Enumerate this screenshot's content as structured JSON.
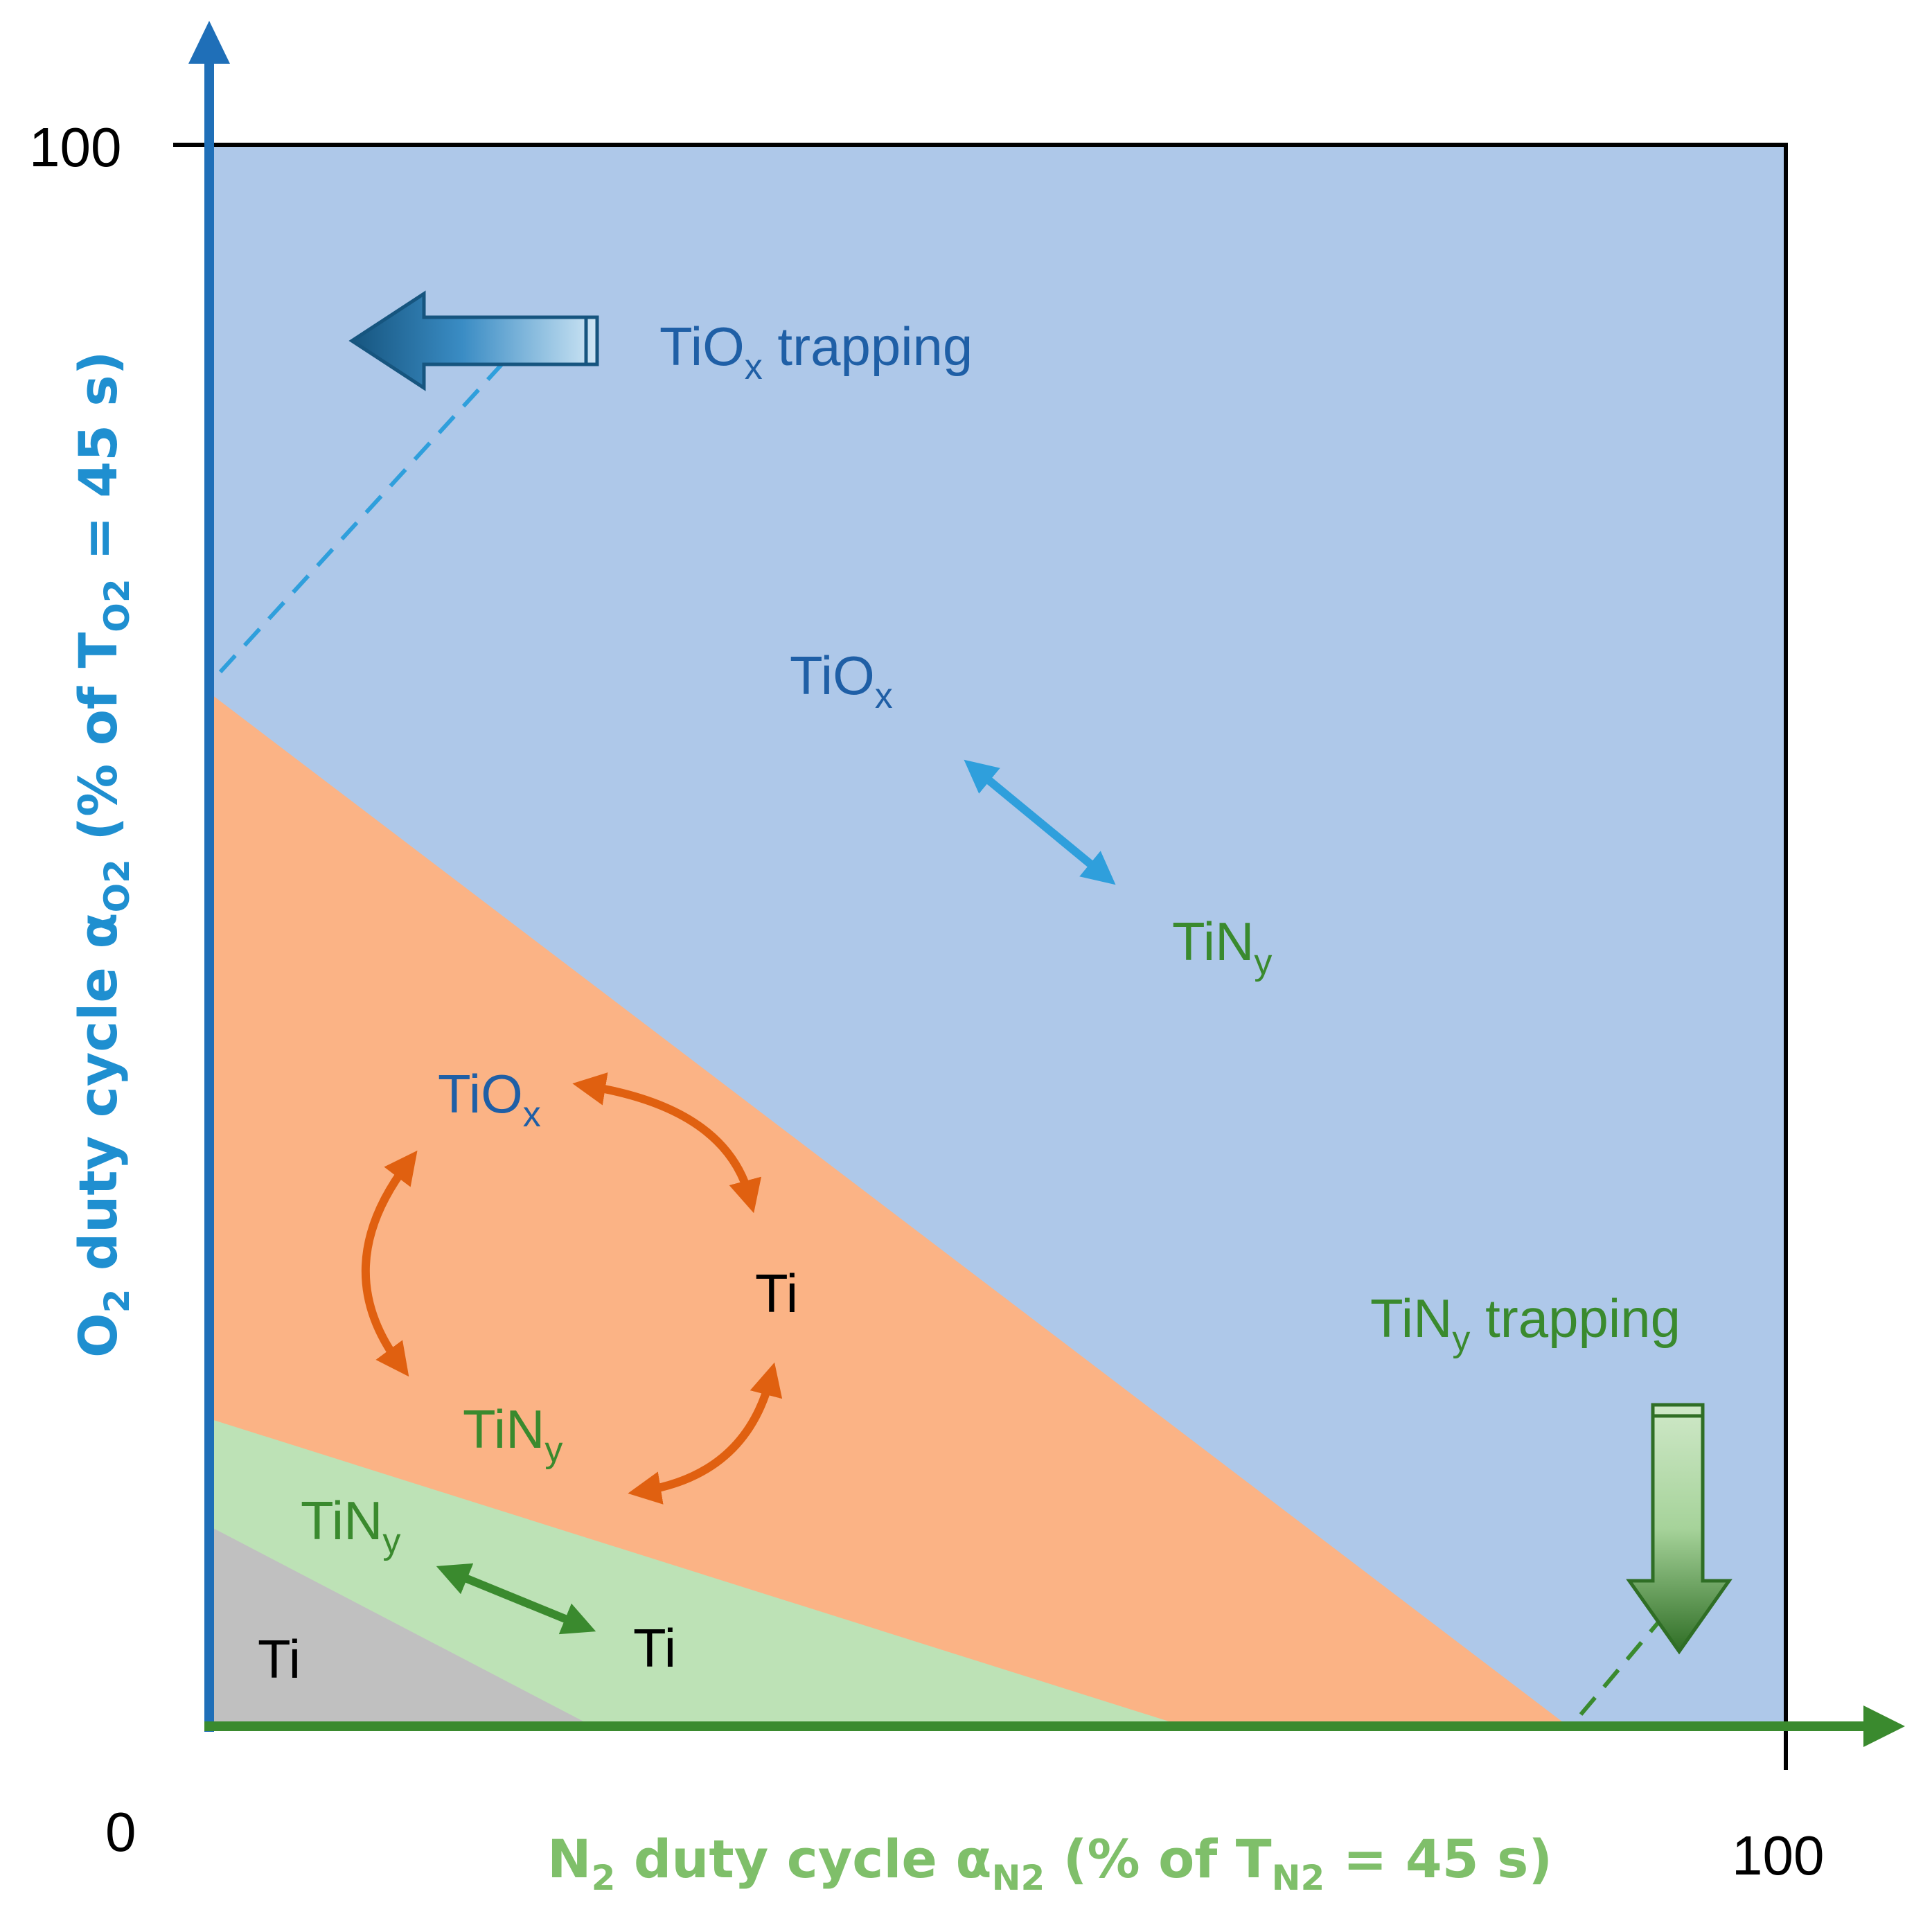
{
  "axes": {
    "x_label_main": "N",
    "x_label_sub": "2",
    "x_label_mid": " duty cycle α",
    "x_label_sub2": "N2",
    "x_label_tail": " (% of T",
    "x_label_sub3": "N2",
    "x_label_end": " = 45 s)",
    "y_label_main": "O",
    "y_label_sub": "2",
    "y_label_mid": " duty cycle α",
    "y_label_sub2": "O2",
    "y_label_tail": " (% of T",
    "y_label_sub3": "O2",
    "y_label_end": " = 45 s)",
    "origin_label": "0",
    "x_max_label": "100",
    "y_max_label": "100",
    "x_color": "#3a8a2e",
    "y_color": "#1f6fb8"
  },
  "regions": {
    "tiox": {
      "color": "#aec8e9"
    },
    "mixed": {
      "color": "#fbb385"
    },
    "tiny": {
      "color": "#bde2b6"
    },
    "ti": {
      "color": "#c0c0c0"
    }
  },
  "labels": {
    "tiox_trapping_main": "TiO",
    "tiox_trapping_sub": "x",
    "tiox_trapping_tail": " trapping",
    "tiny_trapping_main": "TiN",
    "tiny_trapping_sub": "y",
    "tiny_trapping_tail": " trapping",
    "blue_tiox_main": "TiO",
    "blue_tiox_sub": "x",
    "blue_tiny_main": "TiN",
    "blue_tiny_sub": "y",
    "orange_tiox_main": "TiO",
    "orange_tiox_sub": "x",
    "orange_ti": "Ti",
    "orange_tiny_main": "TiN",
    "orange_tiny_sub": "y",
    "green_tiny_main": "TiN",
    "green_tiny_sub": "y",
    "green_ti": "Ti",
    "grey_ti": "Ti"
  },
  "colors": {
    "blue_text": "#1f5fa6",
    "green_text": "#3a8a2e",
    "orange_arrow": "#e06010",
    "cyan_arrow": "#2f9fdc",
    "green_arrow": "#3a8a2e"
  }
}
